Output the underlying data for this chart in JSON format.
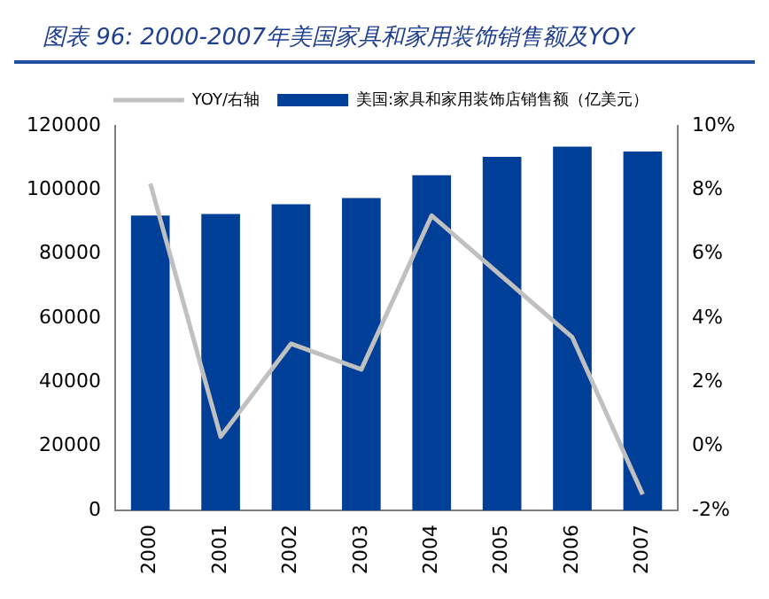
{
  "chart_data": {
    "type": "bar",
    "title": "图表 96:  2000-2007年美国家具和家用装饰销售额及YOY",
    "categories": [
      "2000",
      "2001",
      "2002",
      "2003",
      "2004",
      "2005",
      "2006",
      "2007"
    ],
    "series": [
      {
        "name": "美国:家具和家用装饰店销售额（亿美元）",
        "color": "#003f98",
        "values": [
          92000,
          92500,
          95500,
          97500,
          104600,
          110300,
          113500,
          112000
        ]
      },
      {
        "name": "YOY/右轴",
        "type": "line",
        "axis": "y2",
        "color": "#c0c0c0",
        "marker": "none",
        "values": [
          8.2,
          0.3,
          3.2,
          2.4,
          7.2,
          5.3,
          3.4,
          -1.5
        ]
      }
    ],
    "ylim": [
      0,
      120000
    ],
    "yticks": [
      0,
      20000,
      40000,
      60000,
      80000,
      100000,
      120000
    ],
    "y2lim": [
      -2,
      10
    ],
    "y2ticks": [
      {
        "value": -2,
        "label": "-2%"
      },
      {
        "value": 0,
        "label": "0%"
      },
      {
        "value": 2,
        "label": "2%"
      },
      {
        "value": 4,
        "label": "4%"
      },
      {
        "value": 6,
        "label": "6%"
      },
      {
        "value": 8,
        "label": "8%"
      },
      {
        "value": 10,
        "label": "10%"
      }
    ],
    "grid": false,
    "legend": "top"
  }
}
